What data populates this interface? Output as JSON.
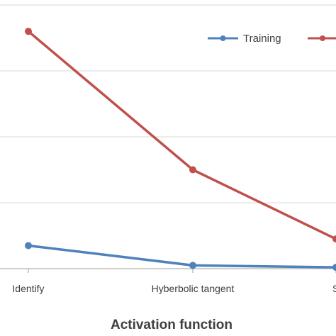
{
  "chart_data": {
    "type": "line",
    "title": "",
    "xlabel": "Activation function",
    "ylabel": "",
    "categories": [
      "Identify",
      "Hyberbolic tangent",
      "S"
    ],
    "series": [
      {
        "name": "Training",
        "color": "#4F81BD",
        "values": [
          0.35,
          0.05,
          0.02
        ]
      },
      {
        "name": "",
        "color": "#C0504D",
        "values": [
          3.6,
          1.5,
          0.45
        ]
      }
    ],
    "ylim": [
      0,
      4
    ],
    "grid": true,
    "legend": "top-right"
  }
}
